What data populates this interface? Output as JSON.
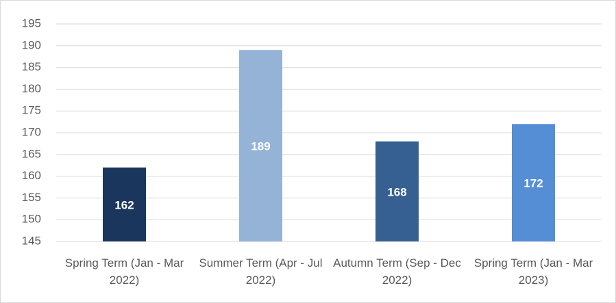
{
  "chart_data": {
    "type": "bar",
    "categories": [
      "Spring Term (Jan - Mar 2022)",
      "Summer Term (Apr - Jul 2022)",
      "Autumn Term (Sep - Dec 2022)",
      "Spring Term (Jan - Mar 2023)"
    ],
    "values": [
      162,
      189,
      168,
      172
    ],
    "colors": [
      "#1b365d",
      "#95b3d7",
      "#366092",
      "#558ed5"
    ],
    "ylim": [
      145,
      195
    ],
    "yticks": [
      145,
      150,
      155,
      160,
      165,
      170,
      175,
      180,
      185,
      190,
      195
    ],
    "grid": true
  }
}
